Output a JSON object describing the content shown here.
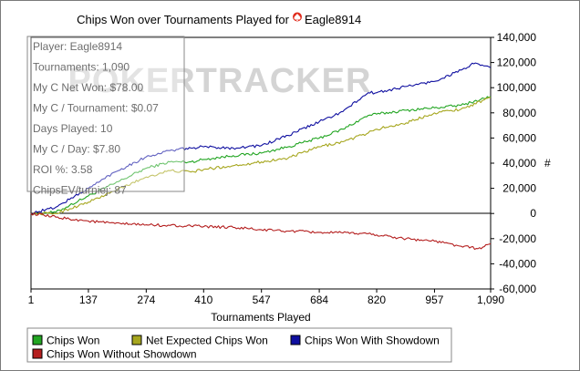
{
  "chart_data": {
    "type": "line",
    "title": "Chips Won over Tournaments Played for",
    "player": "Eagle8914",
    "xlabel": "Tournaments Played",
    "ylabel": "#",
    "x_ticks": [
      "1",
      "137",
      "274",
      "410",
      "547",
      "684",
      "820",
      "957",
      "1,090"
    ],
    "y_ticks": [
      "140,000",
      "120,000",
      "100,000",
      "80,000",
      "60,000",
      "40,000",
      "20,000",
      "0",
      "-20,000",
      "-40,000",
      "-60,000"
    ],
    "xlim": [
      1,
      1090
    ],
    "ylim": [
      -60000,
      140000
    ],
    "watermark": "POKERTRACKER",
    "stats_box": {
      "player": "Player: Eagle8914",
      "tournaments": "Tournaments: 1,090",
      "net_won": "My C Net Won: $78.00",
      "per_tournament": "My C / Tournament: $0.07",
      "days_played": "Days Played: 10",
      "per_day": "My C / Day: $7.80",
      "roi": "ROI %: 3.58",
      "chips_ev": "ChipsEV/turniej: 87"
    },
    "series": [
      {
        "name": "Chips Won",
        "color": "#22a522",
        "x": [
          1,
          60,
          137,
          200,
          274,
          330,
          380,
          410,
          480,
          547,
          610,
          684,
          740,
          800,
          820,
          890,
          957,
          1020,
          1090
        ],
        "y": [
          0,
          1000,
          14000,
          24000,
          36000,
          41000,
          41000,
          43000,
          46000,
          48000,
          53000,
          60000,
          67000,
          78000,
          79000,
          82000,
          84000,
          86000,
          93000
        ]
      },
      {
        "name": "Net Expected Chips Won",
        "color": "#a6a61e",
        "x": [
          1,
          60,
          137,
          200,
          274,
          330,
          380,
          410,
          480,
          547,
          610,
          684,
          740,
          800,
          820,
          890,
          957,
          1020,
          1090
        ],
        "y": [
          0,
          0,
          9000,
          18000,
          29000,
          34000,
          33000,
          35000,
          38000,
          41000,
          44000,
          53000,
          57000,
          64000,
          67000,
          72000,
          80000,
          83000,
          92000
        ]
      },
      {
        "name": "Chips Won With Showdown",
        "color": "#0f0fa0",
        "x": [
          1,
          60,
          137,
          200,
          274,
          330,
          380,
          410,
          480,
          547,
          610,
          684,
          740,
          800,
          820,
          890,
          957,
          1020,
          1050,
          1090
        ],
        "y": [
          0,
          5000,
          20000,
          33000,
          45000,
          50000,
          52000,
          53000,
          52000,
          54000,
          62000,
          73000,
          81000,
          96000,
          96000,
          101000,
          105000,
          114000,
          119000,
          116000
        ]
      },
      {
        "name": "Chips Won Without Showdown",
        "color": "#b41e1e",
        "x": [
          1,
          60,
          137,
          200,
          274,
          330,
          380,
          410,
          480,
          547,
          610,
          684,
          740,
          800,
          820,
          890,
          957,
          1020,
          1060,
          1090
        ],
        "y": [
          0,
          -3000,
          -6000,
          -8000,
          -9000,
          -9500,
          -10000,
          -10500,
          -11000,
          -13000,
          -14000,
          -15000,
          -15500,
          -16000,
          -17000,
          -20000,
          -22000,
          -26000,
          -28000,
          -24000
        ]
      }
    ],
    "legend": [
      {
        "label": "Chips Won",
        "color": "#22a522"
      },
      {
        "label": "Net Expected Chips Won",
        "color": "#a6a61e"
      },
      {
        "label": "Chips Won With Showdown",
        "color": "#0f0fa0"
      },
      {
        "label": "Chips Won Without Showdown",
        "color": "#b41e1e"
      }
    ],
    "legend_position": "bottom",
    "grid": false
  }
}
